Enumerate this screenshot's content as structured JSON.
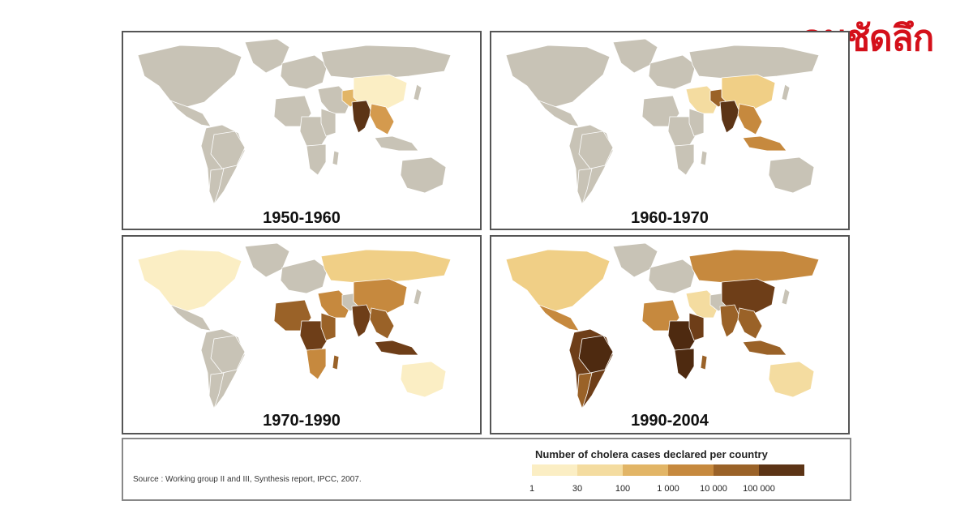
{
  "logo": {
    "text": "คมชัดลึก"
  },
  "panels": [
    {
      "period": "1950-1960",
      "fills": {
        "india": "#5c3416",
        "china": "#fbeec4",
        "seasia": "#d49a4e",
        "pakistan": "#e2b566"
      }
    },
    {
      "period": "1960-1970",
      "fills": {
        "india": "#5c3416",
        "china": "#f0cf86",
        "seasia": "#c6893e",
        "pakistan": "#9a6228",
        "middleeast": "#f4dca0",
        "indonesia": "#c6893e"
      }
    },
    {
      "period": "1970-1990",
      "fills": {
        "northamerica": "#fbeec4",
        "russia": "#f0cf86",
        "china": "#c6893e",
        "india": "#6e3e18",
        "seasia": "#9a6228",
        "indonesia": "#6e3e18",
        "europe": "#c8c3b6",
        "middleeast": "#c6893e",
        "westafrica": "#9a6228",
        "centralafrica": "#6e3e18",
        "eastafrica": "#9a6228",
        "southafrica": "#c6893e",
        "madagascar": "#9a6228",
        "australia": "#fbeec4"
      }
    },
    {
      "period": "1990-2004",
      "fills": {
        "northamerica": "#f0cf86",
        "mexico": "#c6893e",
        "brazil": "#4e2a10",
        "southamerica": "#6e3e18",
        "argentina": "#9a6228",
        "russia": "#c6893e",
        "china": "#6e3e18",
        "india": "#9a6228",
        "seasia": "#9a6228",
        "indonesia": "#9a6228",
        "europe": "#c8c3b6",
        "middleeast": "#f4dca0",
        "westafrica": "#c6893e",
        "centralafrica": "#4e2a10",
        "eastafrica": "#6e3e18",
        "southafrica": "#4e2a10",
        "madagascar": "#9a6228",
        "australia": "#f4dca0"
      }
    }
  ],
  "legend": {
    "title": "Number of cholera cases declared per country",
    "ticks": [
      "1",
      "30",
      "100",
      "1 000",
      "10 000",
      "100 000"
    ],
    "colors": [
      "#fbeec4",
      "#f4dca0",
      "#e2b566",
      "#c6893e",
      "#9a6228",
      "#5c3416"
    ]
  },
  "source": "Source : Working group II and III, Synthesis report, IPCC, 2007.",
  "base_land_color": "#c8c3b6"
}
